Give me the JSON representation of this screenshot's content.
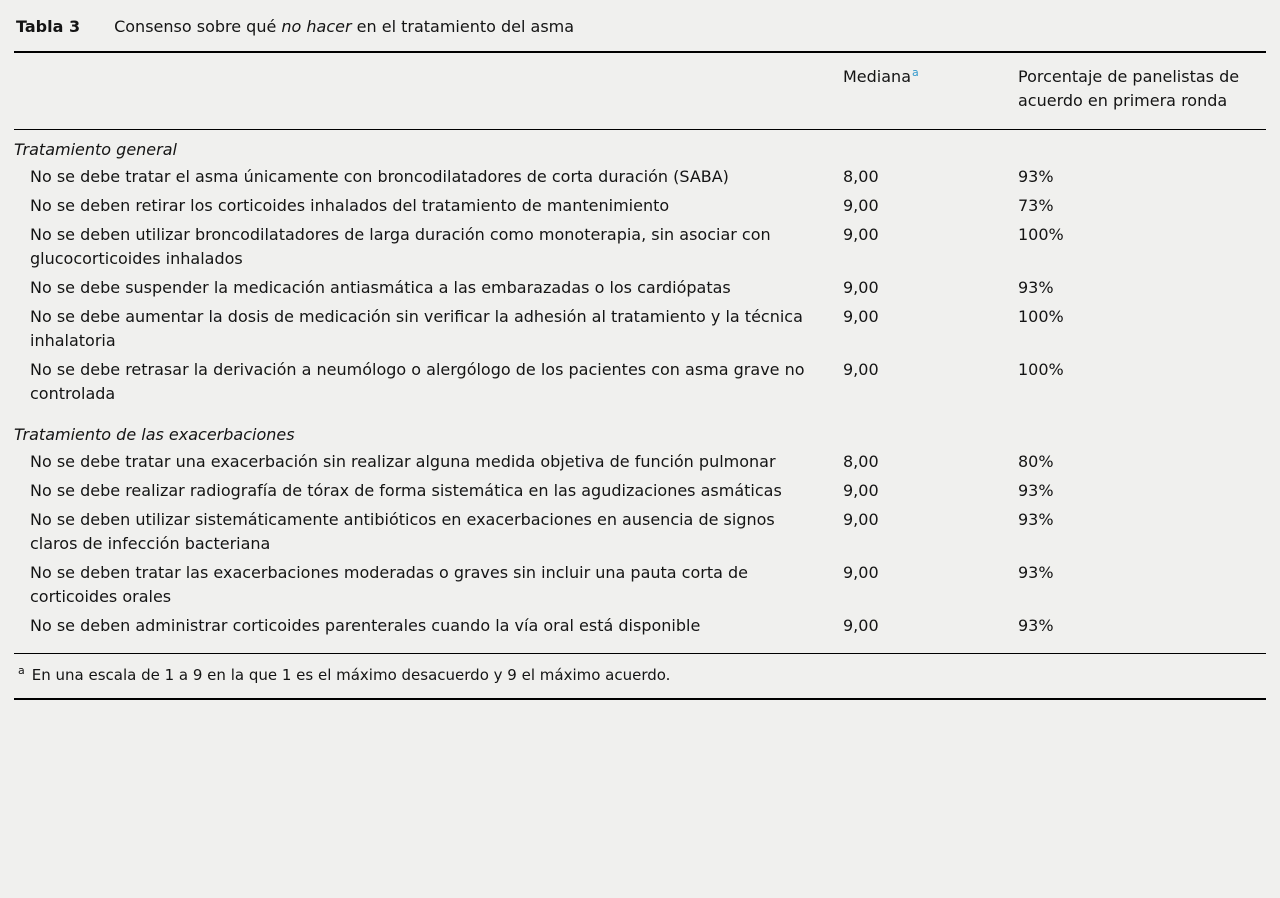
{
  "page": {
    "background_color": "#f0f0ee",
    "accent_color": "#3399cc"
  },
  "table": {
    "label": "Tabla 3",
    "title": {
      "pre": "Consenso sobre qué ",
      "italic": "no hacer",
      "post": " en el tratamiento del asma"
    },
    "columns": {
      "mediana_label": "Mediana",
      "mediana_footnote_marker": "a",
      "porcentaje_label": "Porcentaje de panelistas de acuerdo en primera ronda"
    },
    "sections": [
      {
        "heading": "Tratamiento general",
        "rows": [
          {
            "text": "No se debe tratar el asma únicamente con broncodilatadores de corta duración (SABA)",
            "mediana": "8,00",
            "porcentaje": "93%"
          },
          {
            "text": "No se deben retirar los corticoides inhalados del tratamiento de mantenimiento",
            "mediana": "9,00",
            "porcentaje": "73%"
          },
          {
            "text": "No se deben utilizar broncodilatadores de larga duración como monoterapia, sin asociar con glucocorticoides inhalados",
            "mediana": "9,00",
            "porcentaje": "100%"
          },
          {
            "text": "No se debe suspender la medicación antiasmática a las embarazadas o los cardiópatas",
            "mediana": "9,00",
            "porcentaje": "93%"
          },
          {
            "text": "No se debe aumentar la dosis de medicación sin verificar la adhesión al tratamiento y la técnica inhalatoria",
            "mediana": "9,00",
            "porcentaje": "100%"
          },
          {
            "text": "No se debe retrasar la derivación a neumólogo o alergólogo de los pacientes con asma grave no controlada",
            "mediana": "9,00",
            "porcentaje": "100%"
          }
        ]
      },
      {
        "heading": "Tratamiento de las exacerbaciones",
        "rows": [
          {
            "text": "No se debe tratar una exacerbación sin realizar alguna medida objetiva de función pulmonar",
            "mediana": "8,00",
            "porcentaje": "80%"
          },
          {
            "text": "No se debe realizar radiografía de tórax de forma sistemática en las agudizaciones asmáticas",
            "mediana": "9,00",
            "porcentaje": "93%"
          },
          {
            "text": "No se deben utilizar sistemáticamente antibióticos en exacerbaciones en ausencia de signos claros de infección bacteriana",
            "mediana": "9,00",
            "porcentaje": "93%"
          },
          {
            "text": "No se deben tratar las exacerbaciones moderadas o graves sin incluir una pauta corta de corticoides orales",
            "mediana": "9,00",
            "porcentaje": "93%"
          },
          {
            "text": "No se deben administrar corticoides parenterales cuando la vía oral está disponible",
            "mediana": "9,00",
            "porcentaje": "93%"
          }
        ]
      }
    ],
    "footnote": {
      "marker": "a",
      "text": "En una escala de 1 a 9 en la que 1 es el máximo desacuerdo y 9 el máximo acuerdo."
    }
  }
}
